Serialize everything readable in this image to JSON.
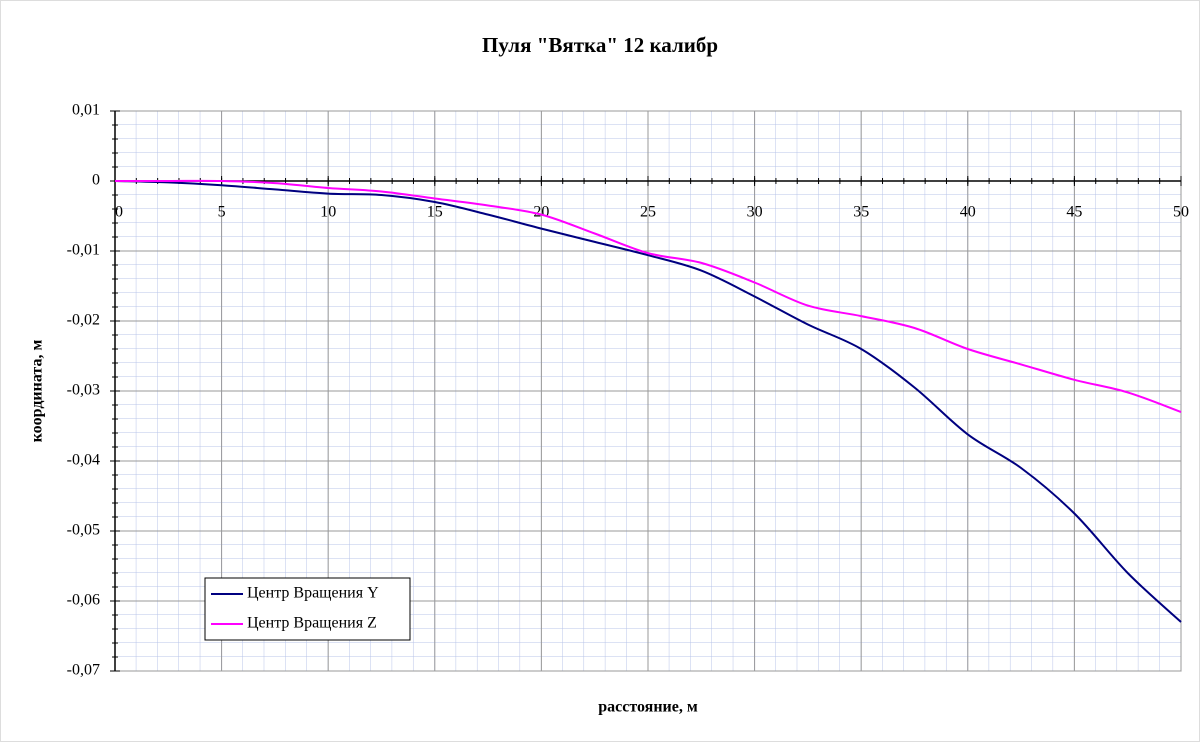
{
  "chart_data": {
    "type": "line",
    "title": "Пуля \"Вятка\" 12 калибр",
    "x_label": "расстояние, м",
    "y_label": "координата, м",
    "x": [
      0,
      2.5,
      5,
      7.5,
      10,
      12.5,
      15,
      17.5,
      20,
      22.5,
      25,
      27.5,
      30,
      32.5,
      35,
      37.5,
      40,
      42.5,
      45,
      47.5,
      50
    ],
    "series": [
      {
        "name": "Центр Вращения Y",
        "color": "#000080",
        "values": [
          0,
          -0.0002,
          -0.0006,
          -0.0012,
          -0.0018,
          -0.002,
          -0.003,
          -0.0048,
          -0.0068,
          -0.0087,
          -0.0106,
          -0.0128,
          -0.0165,
          -0.0205,
          -0.024,
          -0.0295,
          -0.0362,
          -0.041,
          -0.0475,
          -0.056,
          -0.063
        ]
      },
      {
        "name": "Центр Вращения Z",
        "color": "#ff00ff",
        "values": [
          0,
          0,
          0,
          -0.0003,
          -0.001,
          -0.0015,
          -0.0025,
          -0.0035,
          -0.0048,
          -0.0075,
          -0.0103,
          -0.0117,
          -0.0145,
          -0.0178,
          -0.0193,
          -0.021,
          -0.024,
          -0.0262,
          -0.0284,
          -0.0302,
          -0.033
        ]
      }
    ],
    "xlim": [
      0,
      50
    ],
    "xticks": [
      0,
      5,
      10,
      15,
      20,
      25,
      30,
      35,
      40,
      45,
      50
    ],
    "ylim": [
      -0.07,
      0.01
    ],
    "yticks": [
      {
        "value": 0.01,
        "label": "0,01"
      },
      0,
      {
        "value": -0.01,
        "label": "-0,01"
      },
      {
        "value": -0.02,
        "label": "-0,02"
      },
      {
        "value": -0.03,
        "label": "-0,03"
      },
      {
        "value": -0.04,
        "label": "-0,04"
      },
      {
        "value": -0.05,
        "label": "-0,05"
      },
      {
        "value": -0.06,
        "label": "-0,06"
      },
      {
        "value": -0.07,
        "label": "-0,07"
      }
    ],
    "grid": true,
    "legend": "lower left"
  }
}
